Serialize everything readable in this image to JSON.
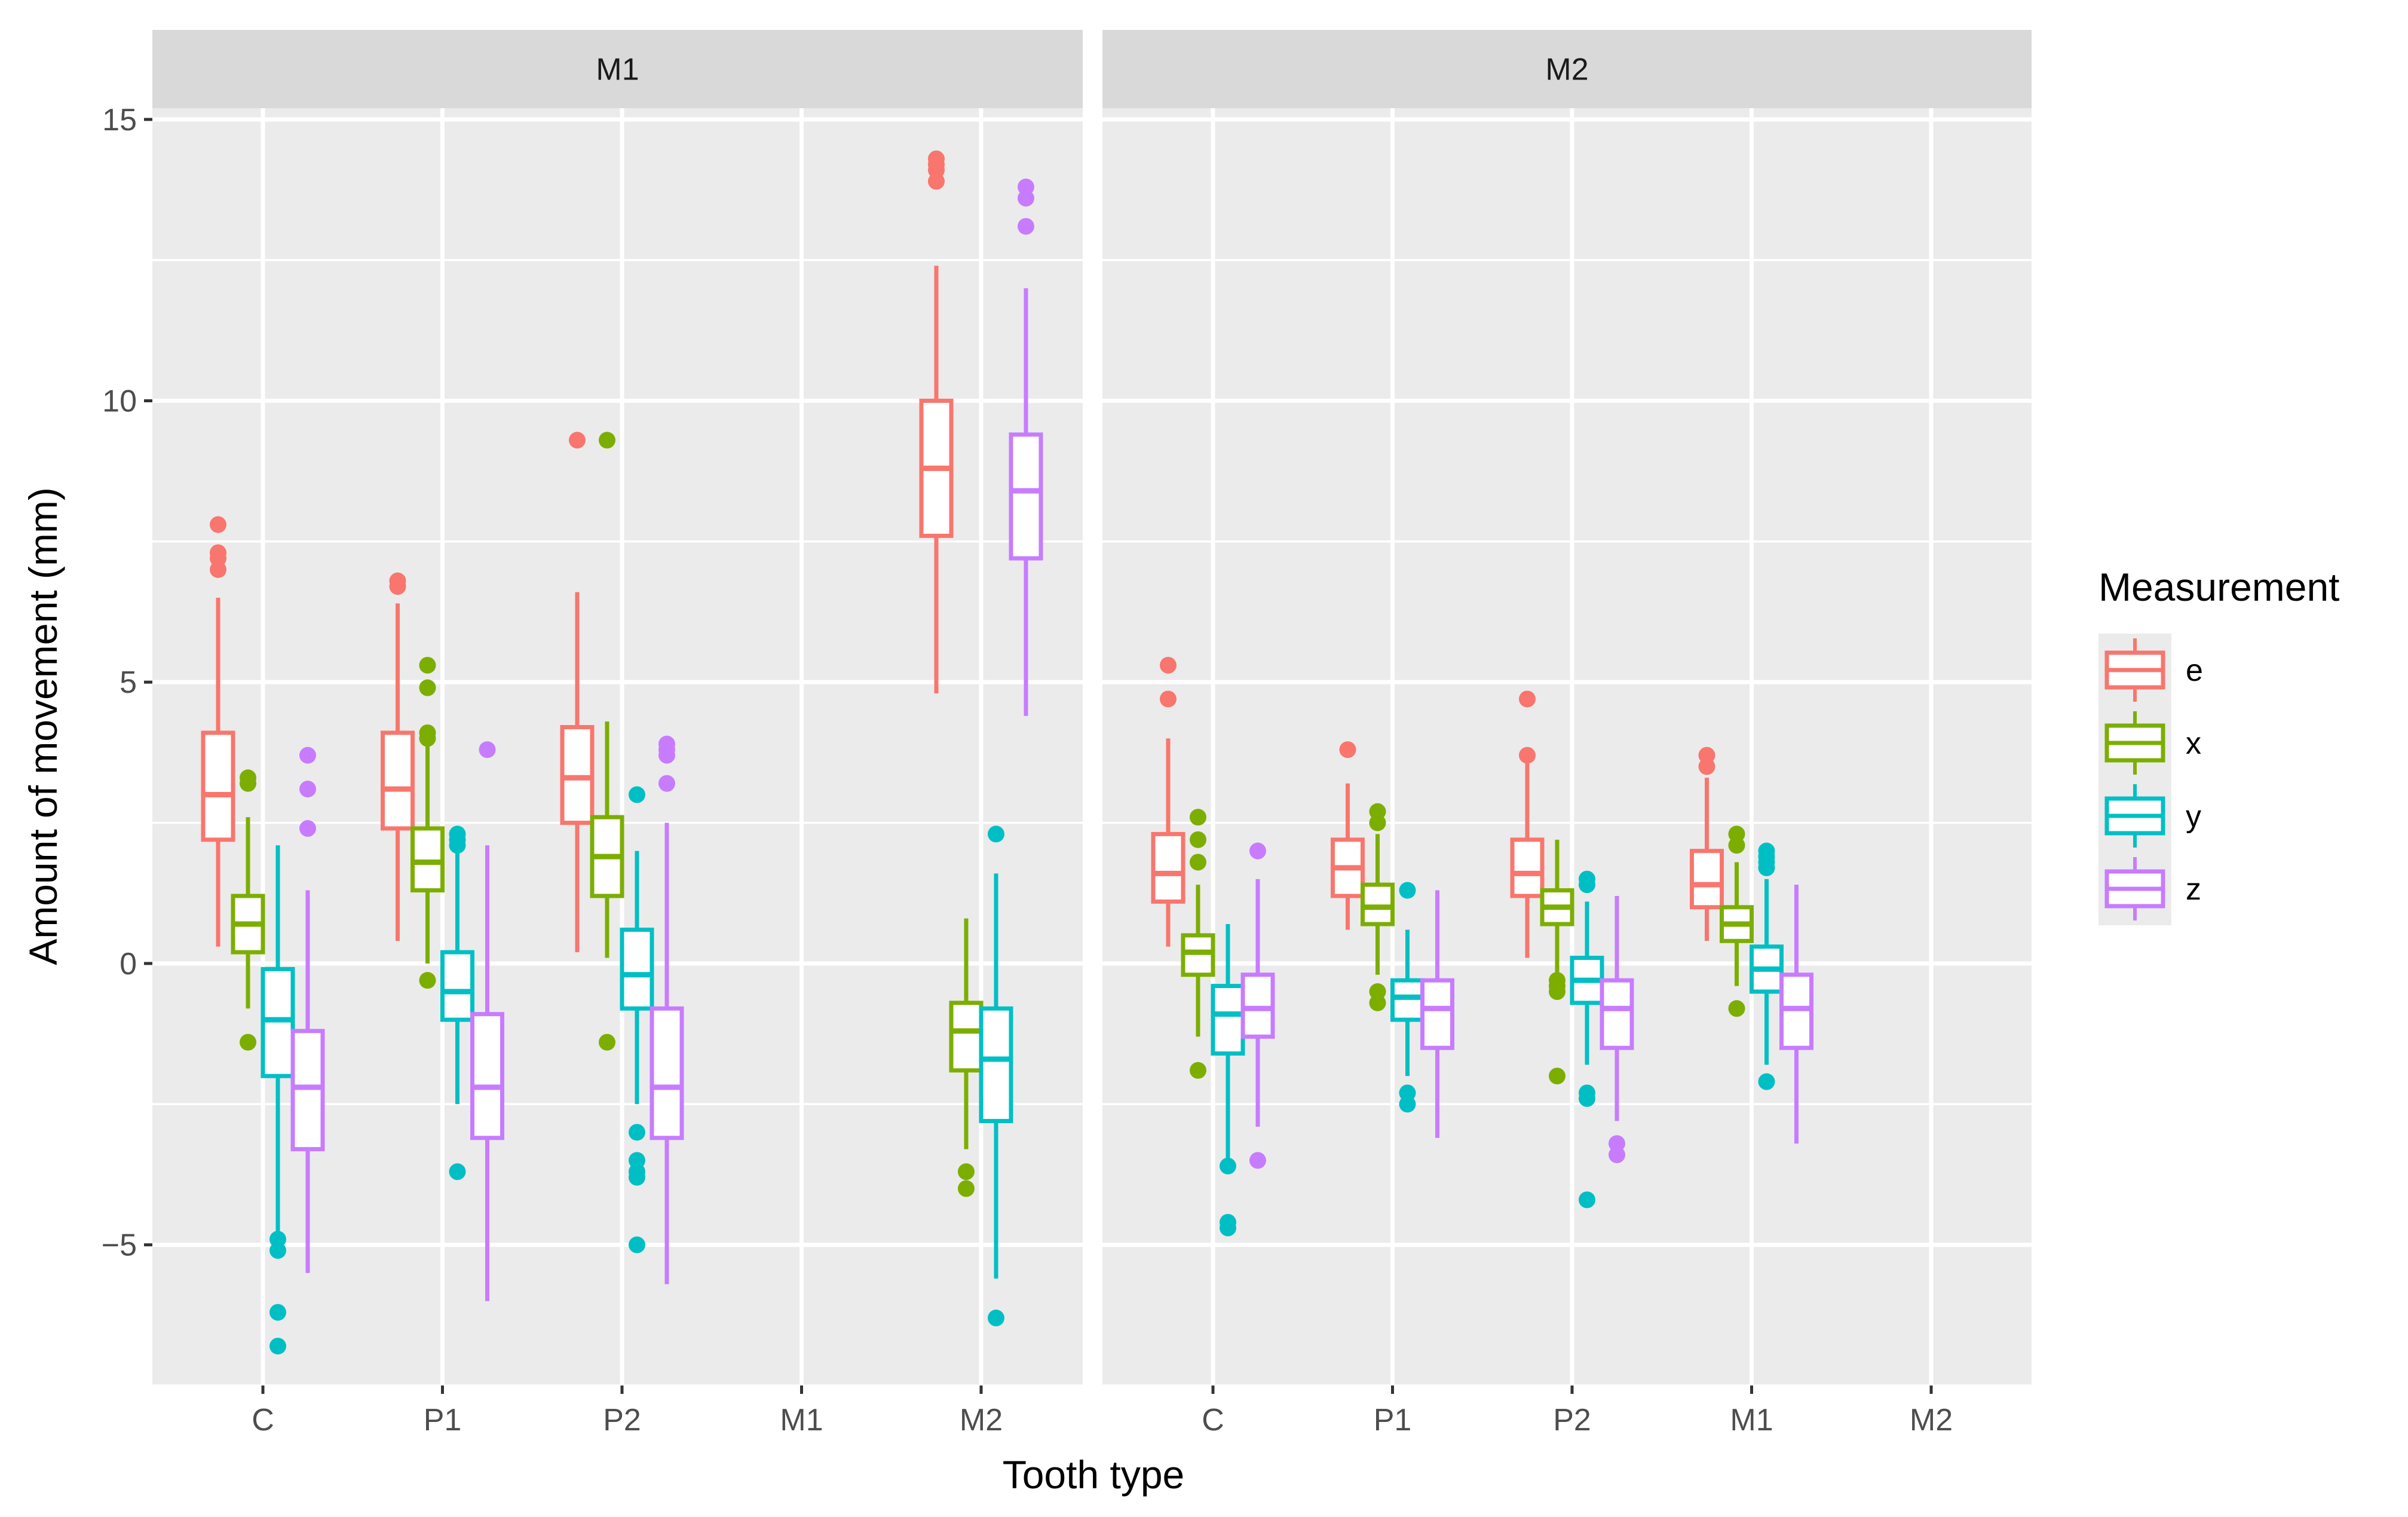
{
  "chart_data": {
    "type": "boxplot",
    "xlabel": "Tooth type",
    "ylabel": "Amount of movement (mm)",
    "ylim": [
      -7.5,
      15.2
    ],
    "y_ticks": [
      -5,
      0,
      5,
      10,
      15
    ],
    "y_tick_labels": [
      "−5",
      "0",
      "5",
      "10",
      "15"
    ],
    "categories": [
      "C",
      "P1",
      "P2",
      "M1",
      "M2"
    ],
    "legend": {
      "title": "Measurement",
      "entries": [
        {
          "key": "e",
          "label": "e",
          "color": "#F8766D"
        },
        {
          "key": "x",
          "label": "x",
          "color": "#7CAE00"
        },
        {
          "key": "y",
          "label": "y",
          "color": "#00BFC4"
        },
        {
          "key": "z",
          "label": "z",
          "color": "#C77CFF"
        }
      ]
    },
    "facets": [
      {
        "label": "M1",
        "groups": [
          {
            "category": "C",
            "boxes": [
              {
                "measure": "e",
                "q1": 2.2,
                "median": 3.0,
                "q3": 4.1,
                "lower": 0.3,
                "upper": 6.5,
                "outliers": [
                  7.0,
                  7.2,
                  7.3,
                  7.8
                ]
              },
              {
                "measure": "x",
                "q1": 0.2,
                "median": 0.7,
                "q3": 1.2,
                "lower": -0.8,
                "upper": 2.6,
                "outliers": [
                  3.2,
                  3.3,
                  -1.4
                ]
              },
              {
                "measure": "y",
                "q1": -2.0,
                "median": -1.0,
                "q3": -0.1,
                "lower": -4.8,
                "upper": 2.1,
                "outliers": [
                  -4.9,
                  -5.1,
                  -6.2,
                  -6.8
                ]
              },
              {
                "measure": "z",
                "q1": -3.3,
                "median": -2.2,
                "q3": -1.2,
                "lower": -5.5,
                "upper": 1.3,
                "outliers": [
                  2.4,
                  3.1,
                  3.7
                ]
              }
            ]
          },
          {
            "category": "P1",
            "boxes": [
              {
                "measure": "e",
                "q1": 2.4,
                "median": 3.1,
                "q3": 4.1,
                "lower": 0.4,
                "upper": 6.4,
                "outliers": [
                  6.7,
                  6.8
                ]
              },
              {
                "measure": "x",
                "q1": 1.3,
                "median": 1.8,
                "q3": 2.4,
                "lower": 0.0,
                "upper": 3.9,
                "outliers": [
                  4.0,
                  4.1,
                  4.9,
                  5.3,
                  -0.3
                ]
              },
              {
                "measure": "y",
                "q1": -1.0,
                "median": -0.5,
                "q3": 0.2,
                "lower": -2.5,
                "upper": 2.0,
                "outliers": [
                  2.1,
                  2.2,
                  2.3,
                  -3.7
                ]
              },
              {
                "measure": "z",
                "q1": -3.1,
                "median": -2.2,
                "q3": -0.9,
                "lower": -6.0,
                "upper": 2.1,
                "outliers": [
                  3.8
                ]
              }
            ]
          },
          {
            "category": "P2",
            "boxes": [
              {
                "measure": "e",
                "q1": 2.5,
                "median": 3.3,
                "q3": 4.2,
                "lower": 0.2,
                "upper": 6.6,
                "outliers": [
                  9.3
                ]
              },
              {
                "measure": "x",
                "q1": 1.2,
                "median": 1.9,
                "q3": 2.6,
                "lower": 0.1,
                "upper": 4.3,
                "outliers": [
                  9.3,
                  -1.4
                ]
              },
              {
                "measure": "y",
                "q1": -0.8,
                "median": -0.2,
                "q3": 0.6,
                "lower": -2.5,
                "upper": 2.0,
                "outliers": [
                  3.0,
                  -3.0,
                  -3.5,
                  -3.7,
                  -3.8,
                  -5.0
                ]
              },
              {
                "measure": "z",
                "q1": -3.1,
                "median": -2.2,
                "q3": -0.8,
                "lower": -5.7,
                "upper": 2.5,
                "outliers": [
                  3.2,
                  3.7,
                  3.8,
                  3.9
                ]
              }
            ]
          },
          {
            "category": "M1",
            "boxes": []
          },
          {
            "category": "M2",
            "boxes": [
              {
                "measure": "e",
                "q1": 7.6,
                "median": 8.8,
                "q3": 10.0,
                "lower": 4.8,
                "upper": 12.4,
                "outliers": [
                  13.9,
                  14.1,
                  14.2,
                  14.3
                ]
              },
              {
                "measure": "x",
                "q1": -1.9,
                "median": -1.2,
                "q3": -0.7,
                "lower": -3.3,
                "upper": 0.8,
                "outliers": [
                  -3.7,
                  -4.0
                ]
              },
              {
                "measure": "y",
                "q1": -2.8,
                "median": -1.7,
                "q3": -0.8,
                "lower": -5.6,
                "upper": 1.6,
                "outliers": [
                  2.3,
                  -6.3
                ]
              },
              {
                "measure": "z",
                "q1": 7.2,
                "median": 8.4,
                "q3": 9.4,
                "lower": 4.4,
                "upper": 12.0,
                "outliers": [
                  13.1,
                  13.6,
                  13.8
                ]
              }
            ]
          }
        ]
      },
      {
        "label": "M2",
        "groups": [
          {
            "category": "C",
            "boxes": [
              {
                "measure": "e",
                "q1": 1.1,
                "median": 1.6,
                "q3": 2.3,
                "lower": 0.3,
                "upper": 4.0,
                "outliers": [
                  4.7,
                  5.3
                ]
              },
              {
                "measure": "x",
                "q1": -0.2,
                "median": 0.2,
                "q3": 0.5,
                "lower": -1.3,
                "upper": 1.4,
                "outliers": [
                  1.8,
                  2.2,
                  2.6,
                  -1.9
                ]
              },
              {
                "measure": "y",
                "q1": -1.6,
                "median": -0.9,
                "q3": -0.4,
                "lower": -3.5,
                "upper": 0.7,
                "outliers": [
                  -3.6,
                  -4.6,
                  -4.7
                ]
              },
              {
                "measure": "z",
                "q1": -1.3,
                "median": -0.8,
                "q3": -0.2,
                "lower": -2.9,
                "upper": 1.5,
                "outliers": [
                  2.0,
                  -3.5
                ]
              }
            ]
          },
          {
            "category": "P1",
            "boxes": [
              {
                "measure": "e",
                "q1": 1.2,
                "median": 1.7,
                "q3": 2.2,
                "lower": 0.6,
                "upper": 3.2,
                "outliers": [
                  3.8
                ]
              },
              {
                "measure": "x",
                "q1": 0.7,
                "median": 1.0,
                "q3": 1.4,
                "lower": -0.2,
                "upper": 2.3,
                "outliers": [
                  2.5,
                  2.7,
                  -0.5,
                  -0.7
                ]
              },
              {
                "measure": "y",
                "q1": -1.0,
                "median": -0.6,
                "q3": -0.3,
                "lower": -2.0,
                "upper": 0.6,
                "outliers": [
                  1.3,
                  -2.3,
                  -2.5
                ]
              },
              {
                "measure": "z",
                "q1": -1.5,
                "median": -0.8,
                "q3": -0.3,
                "lower": -3.1,
                "upper": 1.3,
                "outliers": []
              }
            ]
          },
          {
            "category": "P2",
            "boxes": [
              {
                "measure": "e",
                "q1": 1.2,
                "median": 1.6,
                "q3": 2.2,
                "lower": 0.1,
                "upper": 3.6,
                "outliers": [
                  3.7,
                  4.7
                ]
              },
              {
                "measure": "x",
                "q1": 0.7,
                "median": 1.0,
                "q3": 1.3,
                "lower": -0.2,
                "upper": 2.2,
                "outliers": [
                  -0.3,
                  -0.4,
                  -0.5,
                  -2.0
                ]
              },
              {
                "measure": "y",
                "q1": -0.7,
                "median": -0.3,
                "q3": 0.1,
                "lower": -1.8,
                "upper": 1.1,
                "outliers": [
                  1.4,
                  1.5,
                  -2.3,
                  -2.4,
                  -4.2
                ]
              },
              {
                "measure": "z",
                "q1": -1.5,
                "median": -0.8,
                "q3": -0.3,
                "lower": -2.8,
                "upper": 1.2,
                "outliers": [
                  -3.2,
                  -3.4
                ]
              }
            ]
          },
          {
            "category": "M1",
            "boxes": [
              {
                "measure": "e",
                "q1": 1.0,
                "median": 1.4,
                "q3": 2.0,
                "lower": 0.4,
                "upper": 3.3,
                "outliers": [
                  3.5,
                  3.7
                ]
              },
              {
                "measure": "x",
                "q1": 0.4,
                "median": 0.7,
                "q3": 1.0,
                "lower": -0.4,
                "upper": 1.8,
                "outliers": [
                  2.1,
                  2.3,
                  -0.8
                ]
              },
              {
                "measure": "y",
                "q1": -0.5,
                "median": -0.1,
                "q3": 0.3,
                "lower": -1.8,
                "upper": 1.5,
                "outliers": [
                  1.7,
                  1.8,
                  1.9,
                  2.0,
                  -2.1
                ]
              },
              {
                "measure": "z",
                "q1": -1.5,
                "median": -0.8,
                "q3": -0.2,
                "lower": -3.2,
                "upper": 1.4,
                "outliers": []
              }
            ]
          },
          {
            "category": "M2",
            "boxes": []
          }
        ]
      }
    ]
  }
}
